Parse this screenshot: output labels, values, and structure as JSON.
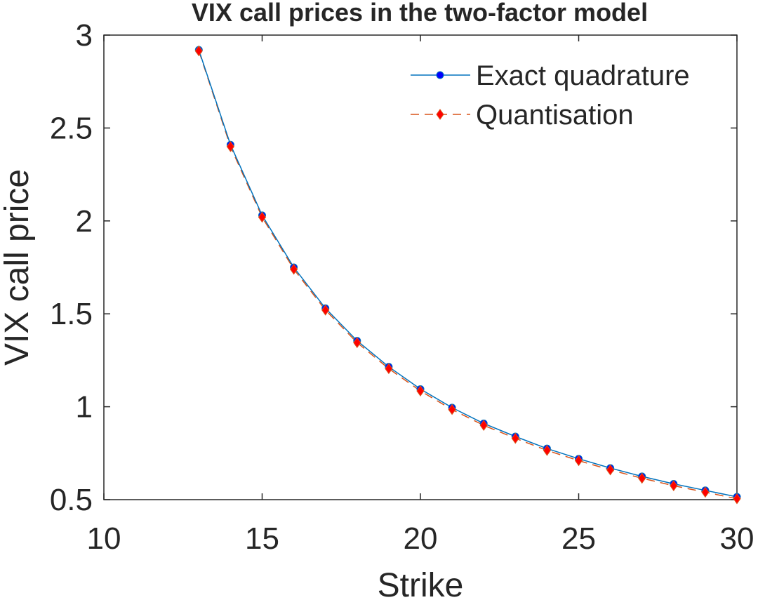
{
  "chart_data": {
    "type": "line",
    "title": "VIX call prices in the two-factor model",
    "xlabel": "Strike",
    "ylabel": "VIX call price",
    "xlim": [
      10,
      30
    ],
    "ylim": [
      0.5,
      3
    ],
    "xticks": [
      "10",
      "15",
      "20",
      "25",
      "30"
    ],
    "yticks": [
      "0.5",
      "1",
      "1.5",
      "2",
      "2.5",
      "3"
    ],
    "grid": false,
    "legend_position": "top-right",
    "x": [
      13,
      14,
      15,
      16,
      17,
      18,
      19,
      20,
      21,
      22,
      23,
      24,
      25,
      26,
      27,
      28,
      29,
      30
    ],
    "series": [
      {
        "name": "Exact quadrature",
        "color": "#0072BD",
        "marker_color": "#0000ff",
        "values": [
          2.92,
          2.41,
          2.03,
          1.75,
          1.53,
          1.355,
          1.215,
          1.095,
          0.995,
          0.91,
          0.84,
          0.775,
          0.72,
          0.67,
          0.625,
          0.585,
          0.55,
          0.515
        ]
      },
      {
        "name": "Quantisation",
        "color": "#D95319",
        "marker_color": "#ff0000",
        "values": [
          2.915,
          2.4,
          2.02,
          1.74,
          1.52,
          1.345,
          1.205,
          1.085,
          0.985,
          0.9,
          0.83,
          0.765,
          0.71,
          0.66,
          0.615,
          0.575,
          0.54,
          0.505
        ]
      }
    ]
  }
}
